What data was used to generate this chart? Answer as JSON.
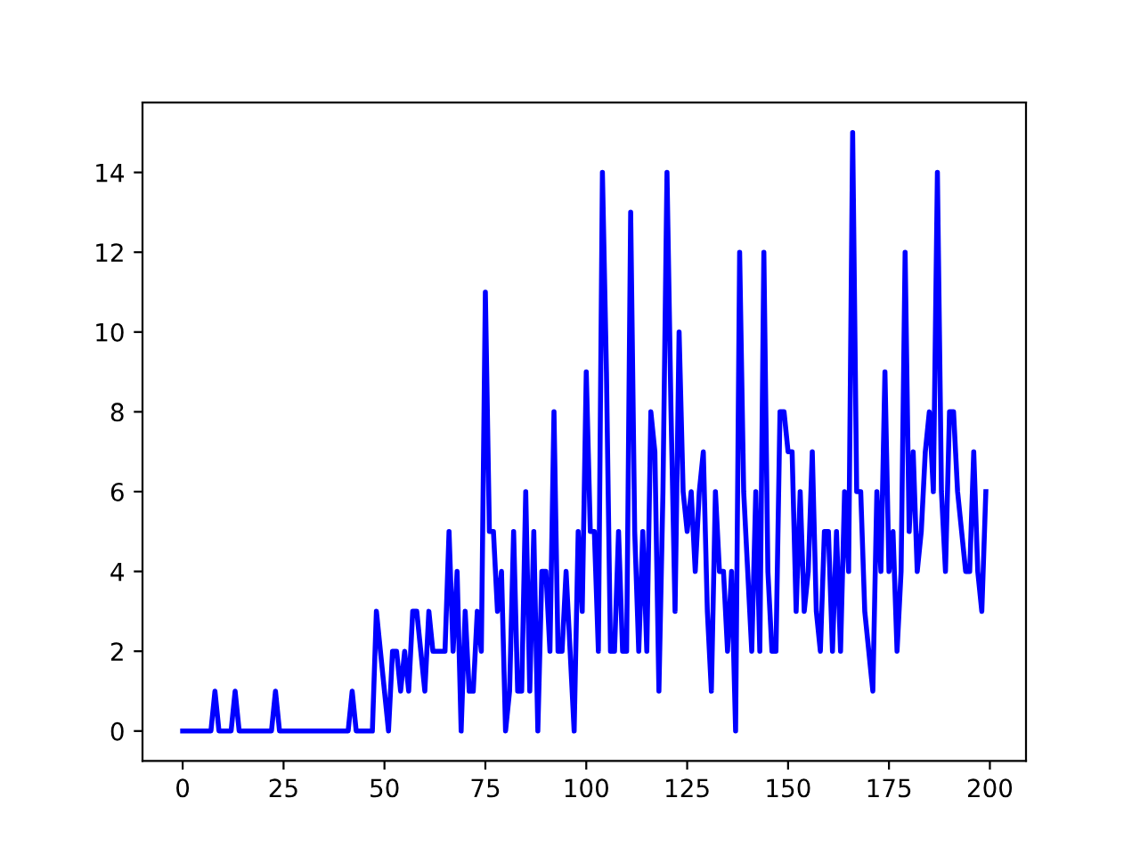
{
  "chart_data": {
    "type": "line",
    "xlim": [
      -9.95,
      208.95
    ],
    "ylim": [
      -0.75,
      15.75
    ],
    "xticks": [
      0,
      25,
      50,
      75,
      100,
      125,
      150,
      175,
      200
    ],
    "yticks": [
      0,
      2,
      4,
      6,
      8,
      10,
      12,
      14
    ],
    "x": [
      0,
      1,
      2,
      3,
      4,
      5,
      6,
      7,
      8,
      9,
      10,
      11,
      12,
      13,
      14,
      15,
      16,
      17,
      18,
      19,
      20,
      21,
      22,
      23,
      24,
      25,
      26,
      27,
      28,
      29,
      30,
      31,
      32,
      33,
      34,
      35,
      36,
      37,
      38,
      39,
      40,
      41,
      42,
      43,
      44,
      45,
      46,
      47,
      48,
      49,
      50,
      51,
      52,
      53,
      54,
      55,
      56,
      57,
      58,
      59,
      60,
      61,
      62,
      63,
      64,
      65,
      66,
      67,
      68,
      69,
      70,
      71,
      72,
      73,
      74,
      75,
      76,
      77,
      78,
      79,
      80,
      81,
      82,
      83,
      84,
      85,
      86,
      87,
      88,
      89,
      90,
      91,
      92,
      93,
      94,
      95,
      96,
      97,
      98,
      99,
      100,
      101,
      102,
      103,
      104,
      105,
      106,
      107,
      108,
      109,
      110,
      111,
      112,
      113,
      114,
      115,
      116,
      117,
      118,
      119,
      120,
      121,
      122,
      123,
      124,
      125,
      126,
      127,
      128,
      129,
      130,
      131,
      132,
      133,
      134,
      135,
      136,
      137,
      138,
      139,
      140,
      141,
      142,
      143,
      144,
      145,
      146,
      147,
      148,
      149,
      150,
      151,
      152,
      153,
      154,
      155,
      156,
      157,
      158,
      159,
      160,
      161,
      162,
      163,
      164,
      165,
      166,
      167,
      168,
      169,
      170,
      171,
      172,
      173,
      174,
      175,
      176,
      177,
      178,
      179,
      180,
      181,
      182,
      183,
      184,
      185,
      186,
      187,
      188,
      189,
      190,
      191,
      192,
      193,
      194,
      195,
      196,
      197,
      198,
      199
    ],
    "grid": false,
    "legend": false,
    "marker": "none",
    "line_style": "solid",
    "series": [
      {
        "color": "#0000ff",
        "values": [
          0,
          0,
          0,
          0,
          0,
          0,
          0,
          0,
          1,
          0,
          0,
          0,
          0,
          1,
          0,
          0,
          0,
          0,
          0,
          0,
          0,
          0,
          0,
          1,
          0,
          0,
          0,
          0,
          0,
          0,
          0,
          0,
          0,
          0,
          0,
          0,
          0,
          0,
          0,
          0,
          0,
          0,
          1,
          0,
          0,
          0,
          0,
          0,
          3,
          2,
          1,
          0,
          2,
          2,
          1,
          2,
          1,
          3,
          3,
          2,
          1,
          3,
          2,
          2,
          2,
          2,
          5,
          2,
          4,
          0,
          3,
          1,
          1,
          3,
          2,
          11,
          5,
          5,
          3,
          4,
          0,
          1,
          5,
          1,
          1,
          6,
          1,
          5,
          0,
          4,
          4,
          2,
          8,
          2,
          2,
          4,
          2,
          0,
          5,
          3,
          9,
          5,
          5,
          2,
          14,
          9,
          2,
          2,
          5,
          2,
          2,
          13,
          5,
          2,
          5,
          2,
          8,
          7,
          1,
          6,
          14,
          8,
          3,
          10,
          6,
          5,
          6,
          4,
          6,
          7,
          3,
          1,
          6,
          4,
          4,
          2,
          4,
          0,
          12,
          6,
          4,
          2,
          6,
          2,
          12,
          4,
          2,
          2,
          8,
          8,
          7,
          7,
          3,
          6,
          3,
          4,
          7,
          3,
          2,
          5,
          5,
          2,
          5,
          2,
          6,
          4,
          15,
          6,
          6,
          3,
          2,
          1,
          6,
          4,
          9,
          4,
          5,
          2,
          4,
          12,
          5,
          7,
          4,
          5,
          7,
          8,
          6,
          14,
          6,
          4,
          8,
          8,
          6,
          5,
          4,
          4,
          7,
          4,
          3,
          6
        ]
      }
    ]
  }
}
